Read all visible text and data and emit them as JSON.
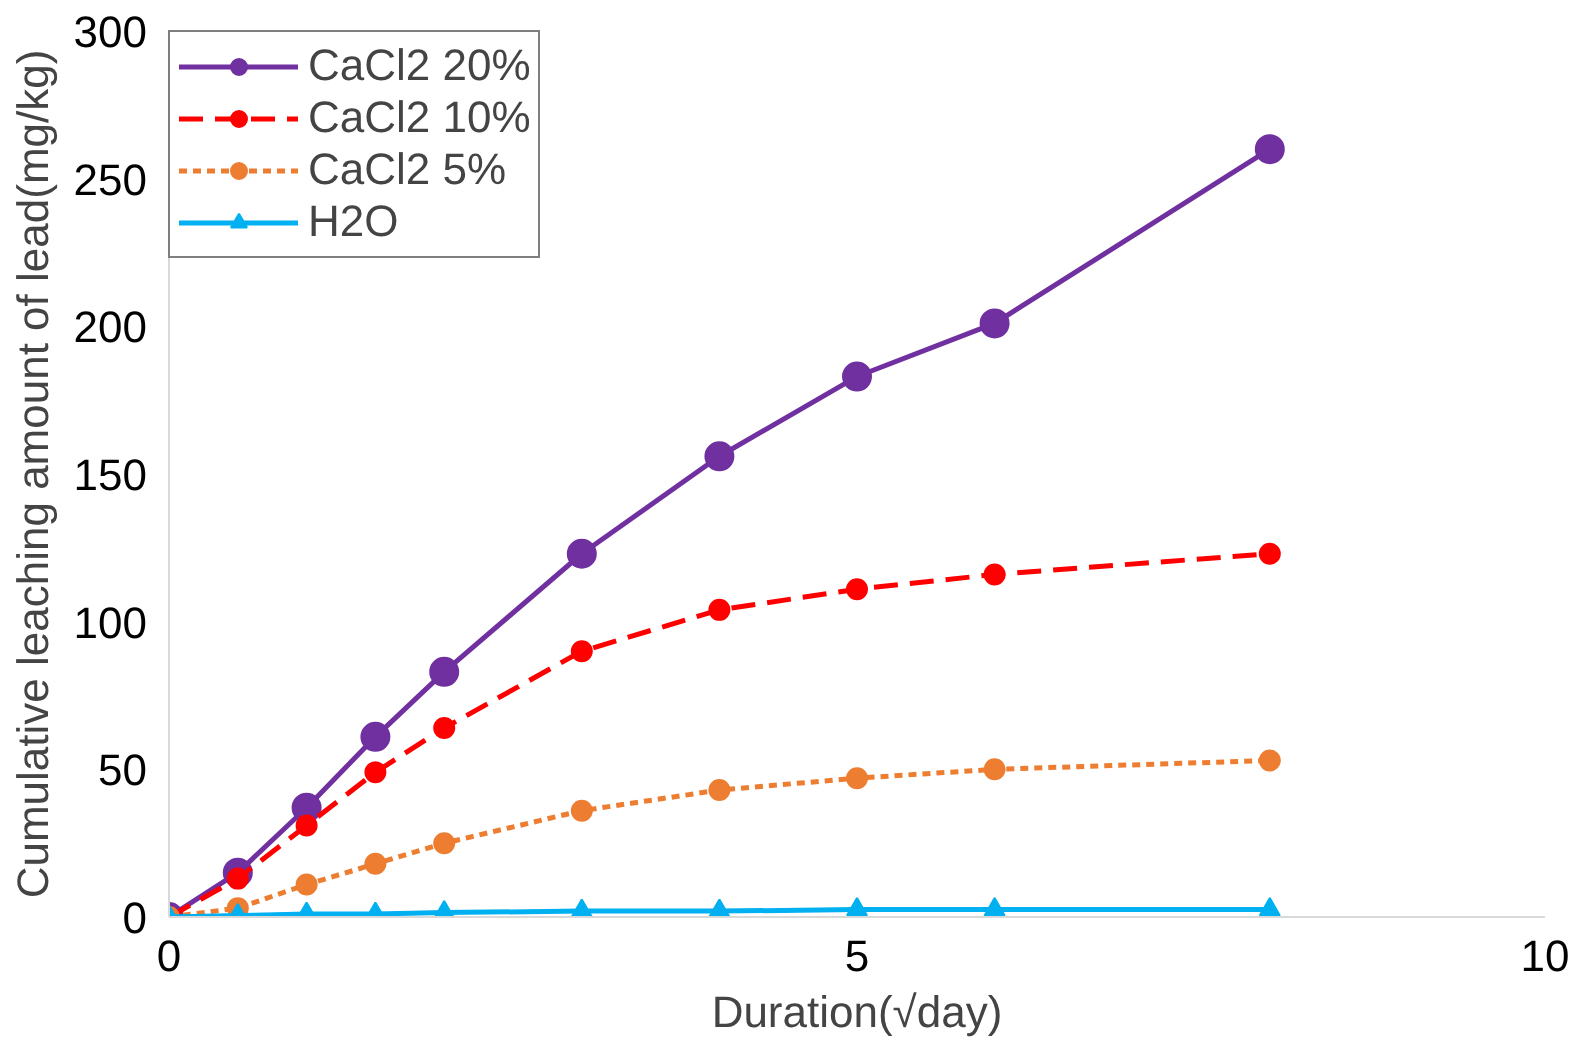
{
  "chart_data": {
    "type": "line",
    "xlabel": "Duration(√day)",
    "ylabel": "Cumulative leaching amount of lead(mg/kg)",
    "x": [
      0,
      0.5,
      1,
      1.5,
      2,
      3,
      4,
      5,
      6,
      8
    ],
    "series": [
      {
        "name": "CaCl2 20%",
        "color": "#7030a0",
        "marker": "circle",
        "line_style": "solid",
        "values": [
          0,
          15,
          37,
          61,
          83,
          123,
          156,
          183,
          201,
          260
        ]
      },
      {
        "name": "CaCl2 10%",
        "color": "#ff0000",
        "marker": "circle",
        "line_style": "dashed",
        "values": [
          0,
          13,
          31,
          49,
          64,
          90,
          104,
          111,
          116,
          123
        ]
      },
      {
        "name": "CaCl2 5%",
        "color": "#ed7d31",
        "marker": "circle",
        "line_style": "dotted",
        "values": [
          0,
          3,
          11,
          18,
          25,
          36,
          43,
          47,
          50,
          53
        ]
      },
      {
        "name": "H2O",
        "color": "#00b0f0",
        "marker": "triangle",
        "line_style": "solid",
        "values": [
          0,
          0.5,
          1,
          1,
          1.5,
          2,
          2,
          2.5,
          2.5,
          2.5
        ]
      }
    ],
    "xlim": [
      0,
      10
    ],
    "xticks": [
      0,
      5,
      10
    ],
    "ylim": [
      0,
      300
    ],
    "yticks": [
      0,
      50,
      100,
      150,
      200,
      250,
      300
    ],
    "grid": false,
    "legend": "top left"
  }
}
